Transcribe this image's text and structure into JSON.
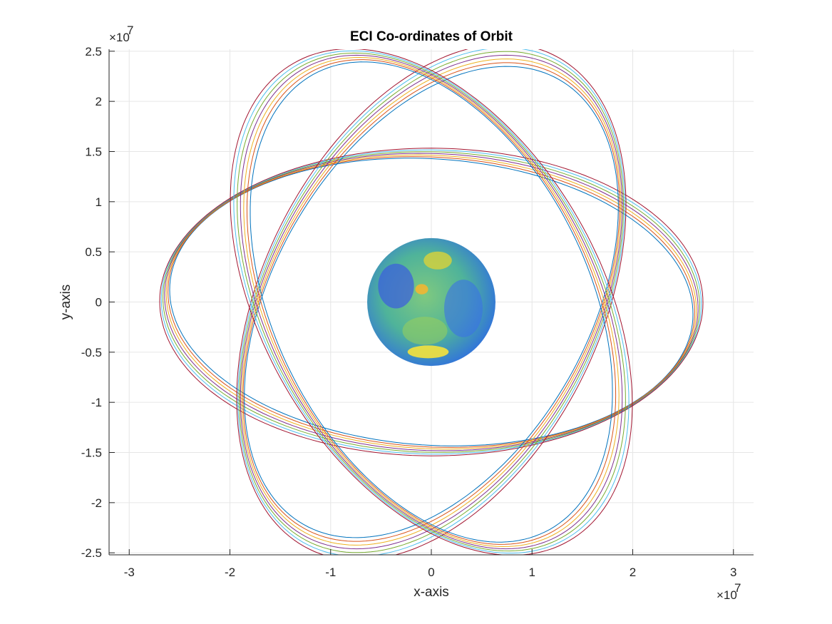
{
  "chart_data": {
    "type": "line",
    "title": "ECI Co-ordinates of Orbit",
    "xlabel": "x-axis",
    "ylabel": "y-axis",
    "x_exponent_base": "×10",
    "x_exponent_power": "7",
    "y_exponent_base": "×10",
    "y_exponent_power": "7",
    "xlim": [
      -32000000.0,
      32000000.0
    ],
    "ylim": [
      -25200000.0,
      25200000.0
    ],
    "x_ticks": [
      -30000000.0,
      -20000000.0,
      -10000000.0,
      0,
      10000000.0,
      20000000.0,
      30000000.0
    ],
    "x_tick_labels": [
      "-3",
      "-2",
      "-1",
      "0",
      "1",
      "2",
      "3"
    ],
    "y_ticks": [
      -25000000.0,
      -20000000.0,
      -15000000.0,
      -10000000.0,
      -5000000.0,
      0,
      5000000.0,
      10000000.0,
      15000000.0,
      20000000.0,
      25000000.0
    ],
    "y_tick_labels": [
      "-2.5",
      "-2",
      "-1.5",
      "-1",
      "-0.5",
      "0",
      "0.5",
      "1",
      "1.5",
      "2",
      "2.5"
    ],
    "grid": true,
    "orbit_families": [
      {
        "center": [
          0,
          0
        ],
        "semi_major": 26500000.0,
        "semi_minor": 14800000.0,
        "rotation_deg": -2
      },
      {
        "center": [
          0,
          0
        ],
        "semi_major": 26500000.0,
        "semi_minor": 16200000.0,
        "rotation_deg": 62
      },
      {
        "center": [
          0,
          0
        ],
        "semi_major": 26500000.0,
        "semi_minor": 16200000.0,
        "rotation_deg": -62
      }
    ],
    "series_colors": [
      "#0072BD",
      "#D95319",
      "#EDB120",
      "#7E2F8E",
      "#77AC30",
      "#4DBEEE",
      "#A2142F"
    ],
    "earth": {
      "center": [
        0,
        0
      ],
      "radius": 6370000.0
    }
  }
}
